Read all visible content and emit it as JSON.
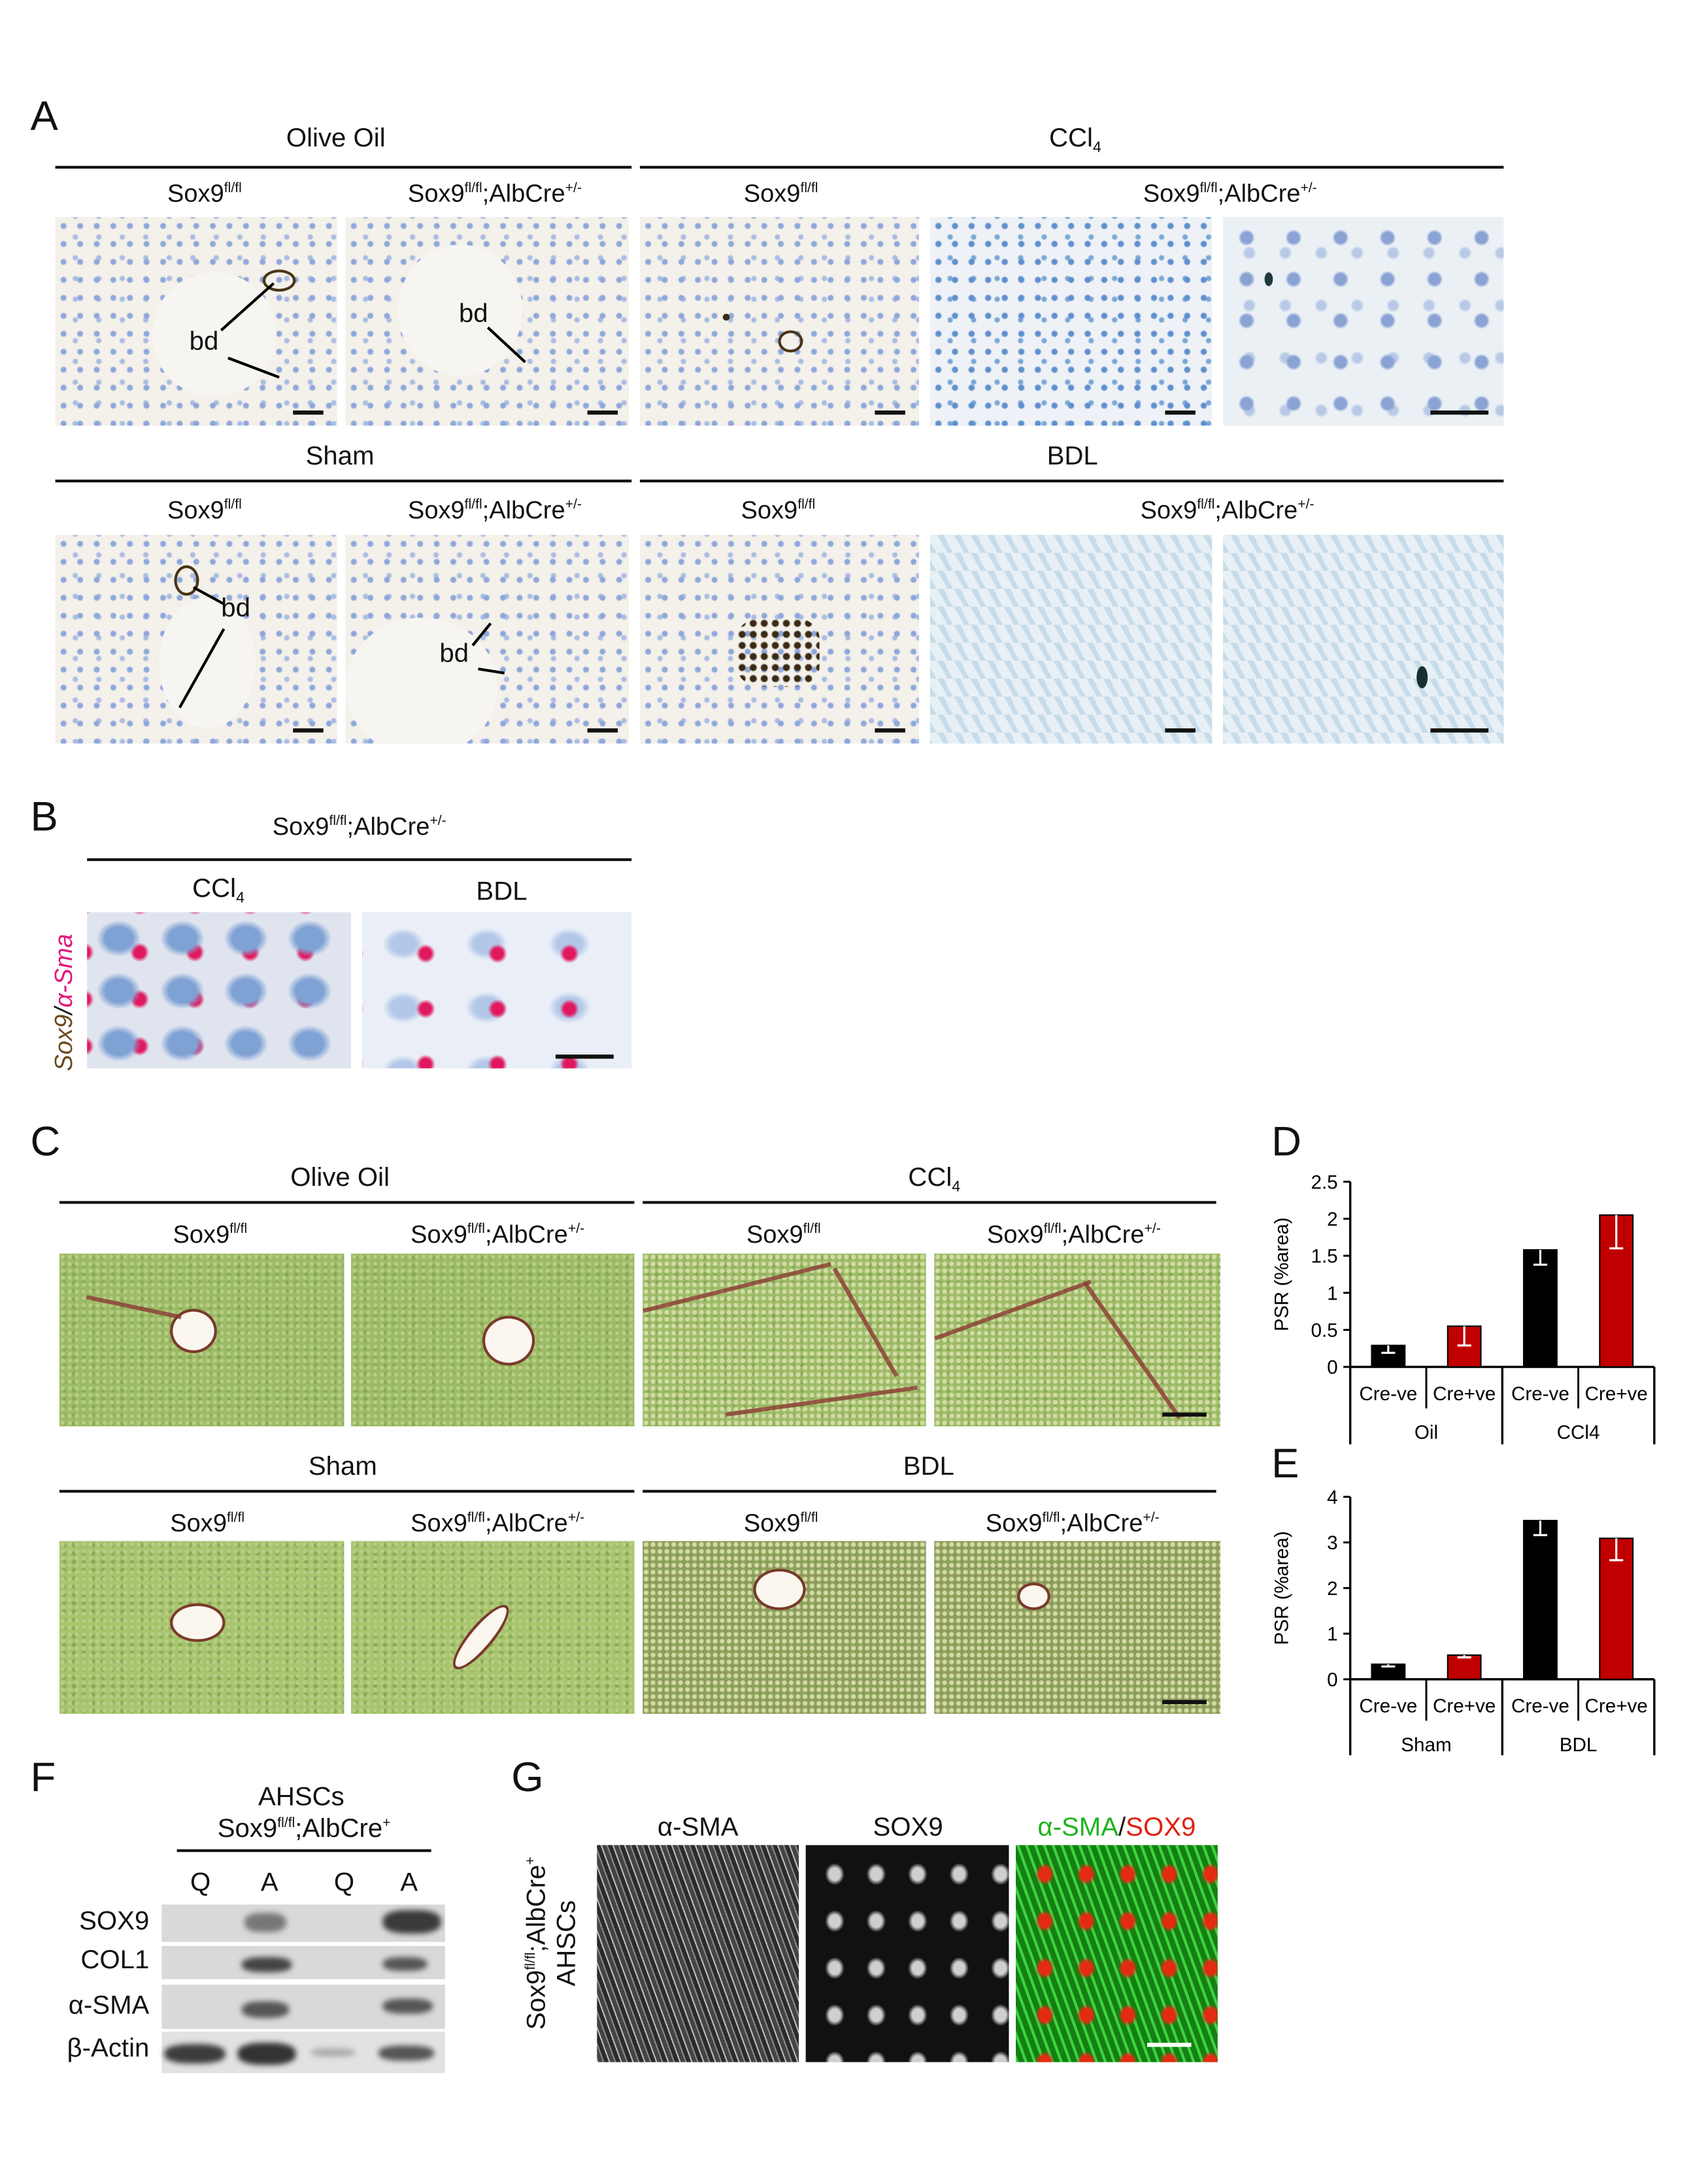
{
  "panel_labels": {
    "A": "A",
    "B": "B",
    "C": "C",
    "D": "D",
    "E": "E",
    "F": "F",
    "G": "G"
  },
  "genotype": {
    "gene": "Sox9",
    "flox": "fl/fl",
    "cre": ";AlbCre",
    "het": "+/-",
    "pos": "+"
  },
  "treatments": {
    "olive_oil": "Olive Oil",
    "ccl4": "CCl",
    "ccl4_sub": "4",
    "sham": "Sham",
    "bdl": "BDL"
  },
  "annotations": {
    "bile_duct": "bd"
  },
  "panel_b": {
    "stain_sox9": "Sox9",
    "stain_sep": "/",
    "stain_sma": "α-Sma"
  },
  "panel_f": {
    "title": "AHSCs",
    "lanes": [
      "Q",
      "A",
      "Q",
      "A"
    ],
    "rows": [
      "SOX9",
      "COL1",
      "α-SMA",
      "β-Actin"
    ]
  },
  "panel_g": {
    "channels": [
      "α-SMA",
      "SOX9"
    ],
    "merge_green": "α-SMA",
    "merge_sep": "/",
    "merge_red": "SOX9",
    "row_label_line2": "AHSCs",
    "colors": {
      "green": "#1fb31f",
      "red": "#e02010"
    }
  },
  "chart_data": [
    {
      "panel": "D",
      "type": "bar",
      "ylabel": "PSR  (%area)",
      "ylim": [
        0,
        2.5
      ],
      "yticks": [
        "0",
        "0.5",
        "1",
        "1.5",
        "2",
        "2.5"
      ],
      "categories": [
        "Cre-ve",
        "Cre+ve",
        "Cre-ve",
        "Cre+ve"
      ],
      "groups": [
        "Oil",
        "CCl4"
      ],
      "values": [
        0.29,
        0.55,
        1.58,
        2.05
      ],
      "errors": [
        0.1,
        0.26,
        0.2,
        0.45
      ],
      "colors": [
        "#000000",
        "#c00000",
        "#000000",
        "#c00000"
      ],
      "grid": false
    },
    {
      "panel": "E",
      "type": "bar",
      "ylabel": "PSR (%area)",
      "ylim": [
        0,
        4
      ],
      "yticks": [
        "0",
        "1",
        "2",
        "3",
        "4"
      ],
      "categories": [
        "Cre-ve",
        "Cre+ve",
        "Cre-ve",
        "Cre+ve"
      ],
      "groups": [
        "Sham",
        "BDL"
      ],
      "values": [
        0.33,
        0.53,
        3.48,
        3.09
      ],
      "errors": [
        0.05,
        0.05,
        0.32,
        0.48
      ],
      "colors": [
        "#000000",
        "#c00000",
        "#000000",
        "#c00000"
      ],
      "grid": false
    }
  ]
}
